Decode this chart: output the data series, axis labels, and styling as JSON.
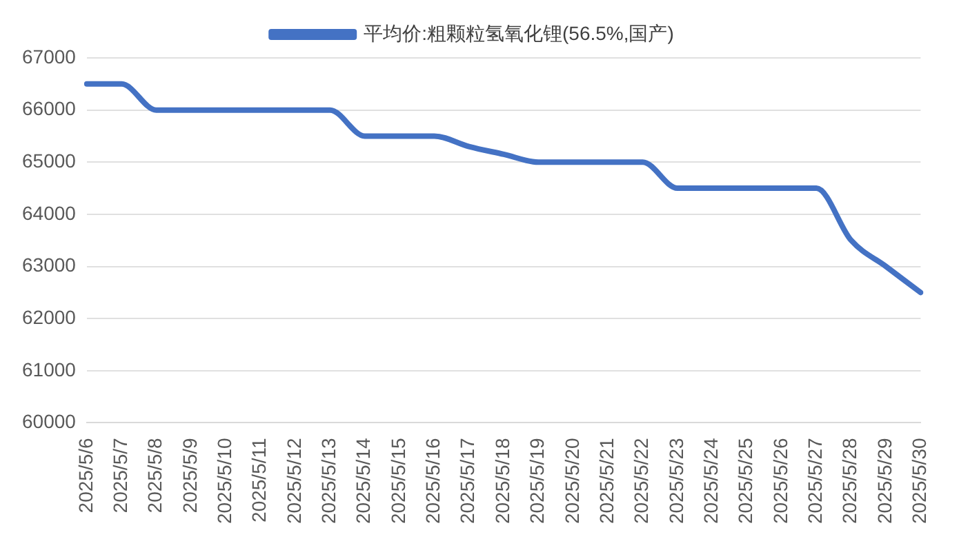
{
  "chart_data": {
    "type": "line",
    "categories": [
      "2025/5/6",
      "2025/5/7",
      "2025/5/8",
      "2025/5/9",
      "2025/5/10",
      "2025/5/11",
      "2025/5/12",
      "2025/5/13",
      "2025/5/14",
      "2025/5/15",
      "2025/5/16",
      "2025/5/17",
      "2025/5/18",
      "2025/5/19",
      "2025/5/20",
      "2025/5/21",
      "2025/5/22",
      "2025/5/23",
      "2025/5/24",
      "2025/5/25",
      "2025/5/26",
      "2025/5/27",
      "2025/5/28",
      "2025/5/29",
      "2025/5/30"
    ],
    "series": [
      {
        "name": "平均价:粗颗粒氢氧化锂(56.5%,国产)",
        "color": "#4472c4",
        "values": [
          66500,
          66500,
          66000,
          66000,
          66000,
          66000,
          66000,
          66000,
          65500,
          65500,
          65500,
          65300,
          65150,
          65000,
          65000,
          65000,
          65000,
          64500,
          64500,
          64500,
          64500,
          64500,
          63500,
          63000,
          62500
        ]
      }
    ],
    "ylim": [
      60000,
      67000
    ],
    "yticks": [
      60000,
      61000,
      62000,
      63000,
      64000,
      65000,
      66000,
      67000
    ],
    "grid": "y",
    "legend": "top",
    "marker": "none",
    "line_style": "solid"
  }
}
